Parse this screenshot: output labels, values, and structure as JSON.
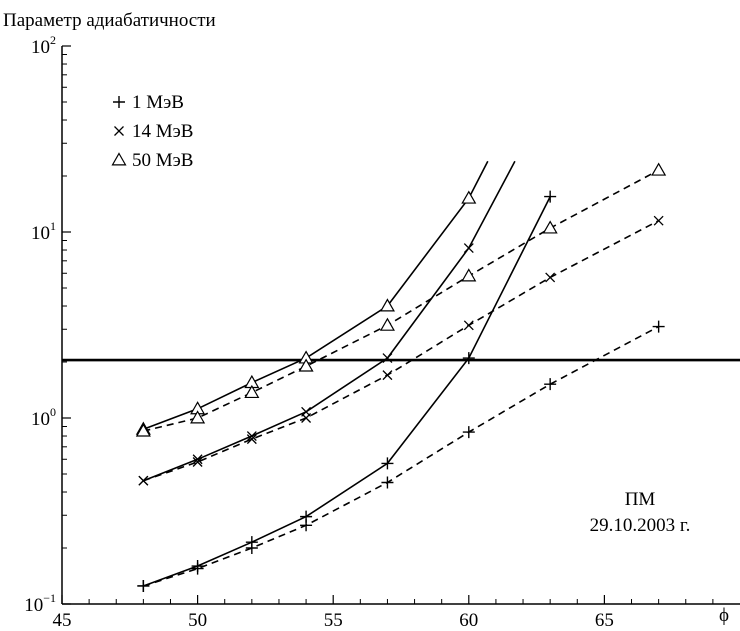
{
  "chart_data": {
    "type": "line",
    "ylabel": "Параметр адиабатичности",
    "xlabel": "ϕ",
    "x_scale": "linear",
    "y_scale": "log",
    "xlim": [
      45,
      70
    ],
    "ylim": [
      0.1,
      100
    ],
    "x_ticks": [
      "45",
      "50",
      "55",
      "60",
      "65"
    ],
    "y_ticks": [
      {
        "value": 0.1,
        "base": "10",
        "exp": "−1"
      },
      {
        "value": 1,
        "base": "10",
        "exp": "0"
      },
      {
        "value": 10,
        "base": "10",
        "exp": "1"
      },
      {
        "value": 100,
        "base": "10",
        "exp": "2"
      }
    ],
    "threshold": 2.05,
    "annotation": [
      "ПМ",
      "29.10.2003 г."
    ],
    "legend": [
      {
        "marker": "+",
        "label": "1 МэВ"
      },
      {
        "marker": "×",
        "label": "14 МэВ"
      },
      {
        "marker": "△",
        "label": "50 МэВ"
      }
    ],
    "series": [
      {
        "energy": "1 МэВ",
        "marker": "+",
        "style": "solid",
        "x": [
          48,
          50,
          52,
          54,
          57,
          60,
          63
        ],
        "y": [
          0.125,
          0.16,
          0.215,
          0.295,
          0.57,
          2.1,
          15.5
        ]
      },
      {
        "energy": "1 МэВ",
        "marker": "+",
        "style": "dashed",
        "x": [
          48,
          50,
          52,
          54,
          57,
          60,
          63,
          67
        ],
        "y": [
          0.125,
          0.155,
          0.2,
          0.265,
          0.45,
          0.84,
          1.52,
          3.1
        ]
      },
      {
        "energy": "14 МэВ",
        "marker": "×",
        "style": "solid",
        "x": [
          48,
          50,
          52,
          54,
          57,
          60,
          61.7
        ],
        "y": [
          0.46,
          0.6,
          0.8,
          1.08,
          2.1,
          8.2,
          24
        ],
        "marker_x": [
          48,
          50,
          52,
          54,
          57,
          60
        ]
      },
      {
        "energy": "14 МэВ",
        "marker": "×",
        "style": "dashed",
        "x": [
          48,
          50,
          52,
          54,
          57,
          60,
          63,
          67
        ],
        "y": [
          0.46,
          0.58,
          0.77,
          1.0,
          1.7,
          3.15,
          5.7,
          11.5
        ]
      },
      {
        "energy": "50 МэВ",
        "marker": "△",
        "style": "solid",
        "x": [
          48,
          50,
          52,
          54,
          57,
          60,
          60.7
        ],
        "y": [
          0.87,
          1.12,
          1.55,
          2.1,
          4.0,
          15.2,
          24
        ],
        "marker_x": [
          48,
          50,
          52,
          54,
          57,
          60
        ]
      },
      {
        "energy": "50 МэВ",
        "marker": "△",
        "style": "dashed",
        "x": [
          48,
          50,
          52,
          54,
          57,
          60,
          63,
          67
        ],
        "y": [
          0.85,
          1.0,
          1.37,
          1.9,
          3.15,
          5.8,
          10.5,
          21.5
        ]
      }
    ]
  }
}
